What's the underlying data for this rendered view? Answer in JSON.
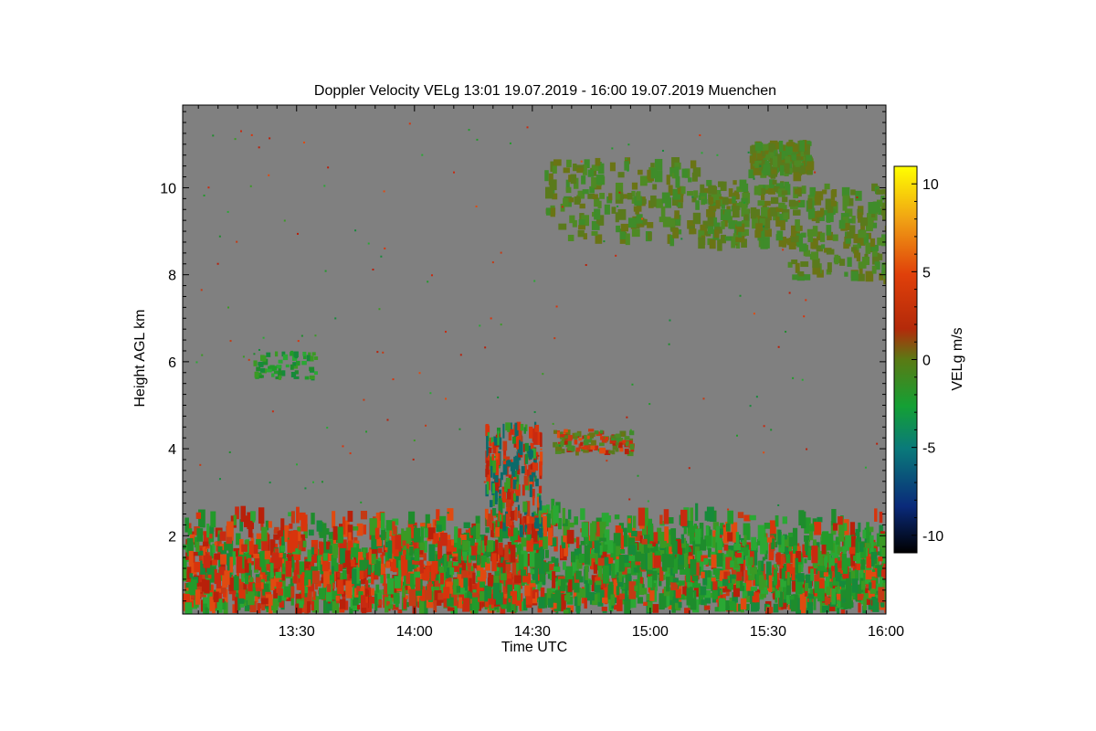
{
  "chart_data": {
    "type": "heatmap",
    "title": "Doppler Velocity VELg   13:01 19.07.2019 - 16:00 19.07.2019 Muenchen",
    "xlabel": "Time UTC",
    "ylabel": "Height AGL km",
    "x_ticks": [
      "13:30",
      "14:00",
      "14:30",
      "15:00",
      "15:30",
      "16:00"
    ],
    "x_tick_minutes": [
      30,
      60,
      90,
      120,
      150,
      180
    ],
    "xlim_minutes": [
      1,
      180
    ],
    "y_ticks": [
      2,
      4,
      6,
      8,
      10
    ],
    "ylim": [
      0.2,
      11.9
    ],
    "colorbar": {
      "label": "VELg m/s",
      "ticks": [
        10,
        5,
        0,
        -5,
        -10
      ],
      "range": [
        -11,
        11
      ],
      "colors": [
        "#000000",
        "#0a2a7a",
        "#0a7a7a",
        "#14a034",
        "#5a7a14",
        "#b42a0a",
        "#e0400a",
        "#f0a014",
        "#ffff00"
      ]
    },
    "colors": {
      "background_missing": "#808080",
      "red": "#c82a10",
      "green": "#229a2a",
      "olive": "#5a7a1c"
    }
  }
}
